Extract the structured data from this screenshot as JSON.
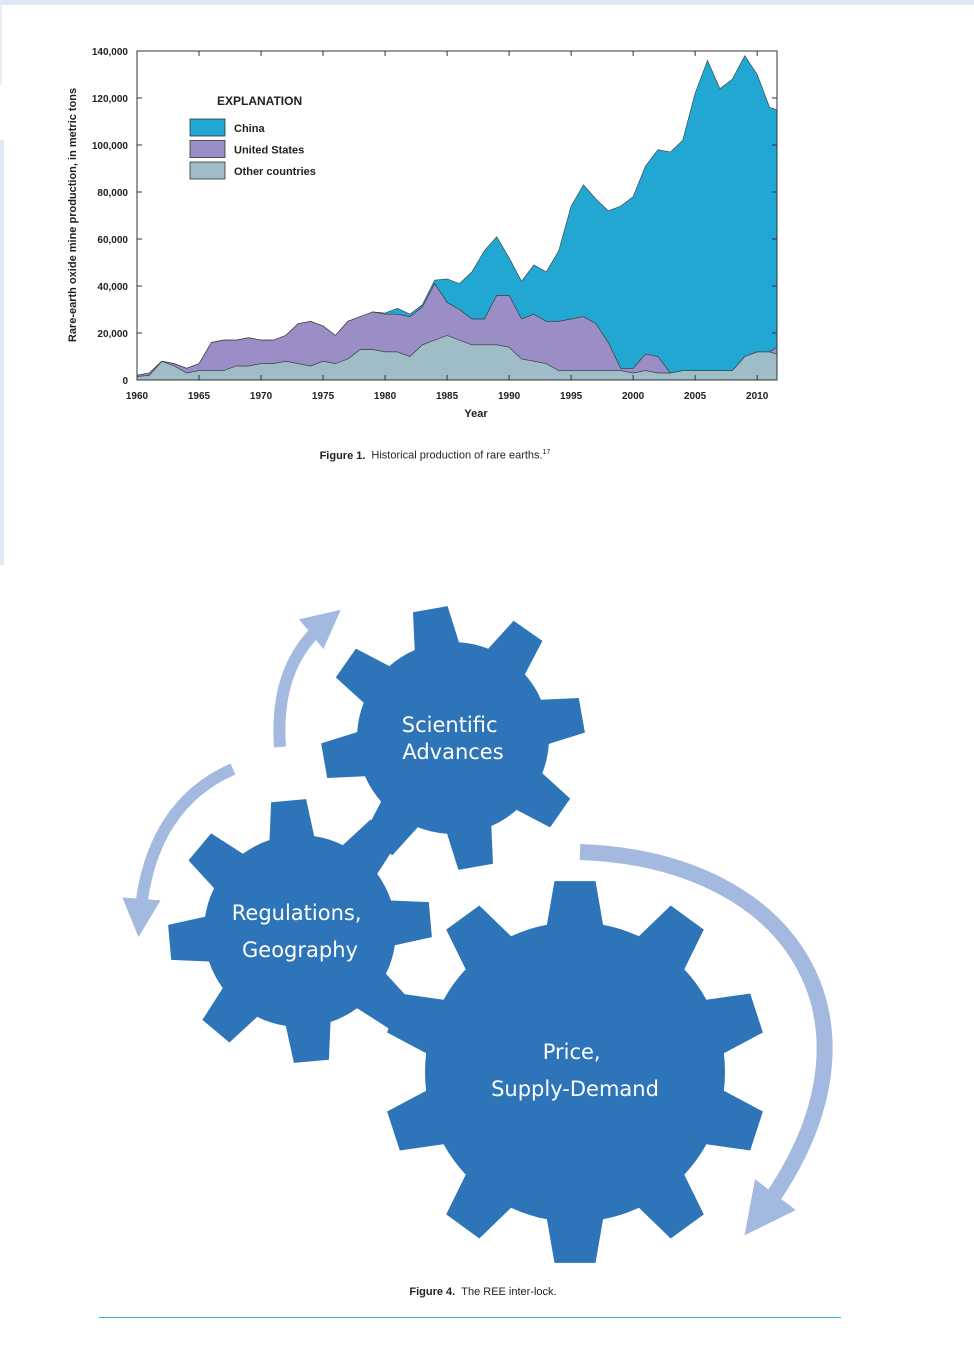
{
  "chart_data": {
    "type": "area",
    "stacked": true,
    "xlabel": "Year",
    "ylabel": "Rare-earth oxide mine production, in metric tons",
    "xlim": [
      1960,
      2011.6
    ],
    "ylim": [
      0,
      140000
    ],
    "x_ticks": [
      1960,
      1965,
      1970,
      1975,
      1980,
      1985,
      1990,
      1995,
      2000,
      2005,
      2010
    ],
    "x_tick_labels": [
      "1960",
      "1965",
      "1970",
      "1975",
      "1980",
      "1985",
      "1990",
      "1995",
      "2000",
      "2005",
      "2010"
    ],
    "y_ticks": [
      0,
      20000,
      40000,
      60000,
      80000,
      100000,
      120000,
      140000
    ],
    "y_tick_labels": [
      "0",
      "20,000",
      "40,000",
      "60,000",
      "80,000",
      "100,000",
      "120,000",
      "140,000"
    ],
    "legend_title": "EXPLANATION",
    "legend_position": "top-left",
    "grid": false,
    "series_order_bottom_to_top": [
      "Other countries",
      "United States",
      "China"
    ],
    "series": [
      {
        "name": "China",
        "color": "#22a7d3",
        "points": [
          [
            1960,
            0
          ],
          [
            1961,
            0
          ],
          [
            1962,
            0
          ],
          [
            1963,
            0
          ],
          [
            1964,
            0
          ],
          [
            1965,
            0
          ],
          [
            1966,
            0
          ],
          [
            1967,
            0
          ],
          [
            1968,
            0
          ],
          [
            1969,
            0
          ],
          [
            1970,
            0
          ],
          [
            1971,
            0
          ],
          [
            1972,
            0
          ],
          [
            1973,
            0
          ],
          [
            1974,
            0
          ],
          [
            1975,
            0
          ],
          [
            1976,
            0
          ],
          [
            1977,
            0
          ],
          [
            1978,
            0
          ],
          [
            1979,
            0
          ],
          [
            1980,
            500
          ],
          [
            1981,
            2500
          ],
          [
            1982,
            1000
          ],
          [
            1983,
            1000
          ],
          [
            1984,
            1500
          ],
          [
            1985,
            10000
          ],
          [
            1986,
            11000
          ],
          [
            1987,
            20000
          ],
          [
            1988,
            29000
          ],
          [
            1989,
            25000
          ],
          [
            1990,
            16000
          ],
          [
            1991,
            16000
          ],
          [
            1992,
            21000
          ],
          [
            1993,
            21000
          ],
          [
            1994,
            30000
          ],
          [
            1995,
            48000
          ],
          [
            1996,
            56000
          ],
          [
            1997,
            53000
          ],
          [
            1998,
            56000
          ],
          [
            1999,
            69000
          ],
          [
            2000,
            73000
          ],
          [
            2001,
            80000
          ],
          [
            2002,
            88000
          ],
          [
            2003,
            94000
          ],
          [
            2004,
            98000
          ],
          [
            2005,
            118000
          ],
          [
            2006,
            132000
          ],
          [
            2007,
            120000
          ],
          [
            2008,
            124000
          ],
          [
            2009,
            128000
          ],
          [
            2010,
            118000
          ],
          [
            2011,
            104000
          ],
          [
            2011.6,
            101000
          ]
        ]
      },
      {
        "name": "United States",
        "color": "#9b8ec6",
        "points": [
          [
            1960,
            500
          ],
          [
            1961,
            1000
          ],
          [
            1962,
            0
          ],
          [
            1963,
            1000
          ],
          [
            1964,
            2000
          ],
          [
            1965,
            3000
          ],
          [
            1966,
            12000
          ],
          [
            1967,
            13000
          ],
          [
            1968,
            11000
          ],
          [
            1969,
            12000
          ],
          [
            1970,
            10000
          ],
          [
            1971,
            10000
          ],
          [
            1972,
            11000
          ],
          [
            1973,
            17000
          ],
          [
            1974,
            19000
          ],
          [
            1975,
            15000
          ],
          [
            1976,
            12000
          ],
          [
            1977,
            16000
          ],
          [
            1978,
            14000
          ],
          [
            1979,
            16000
          ],
          [
            1980,
            16000
          ],
          [
            1981,
            16000
          ],
          [
            1982,
            17000
          ],
          [
            1983,
            16000
          ],
          [
            1984,
            24000
          ],
          [
            1985,
            14000
          ],
          [
            1986,
            13000
          ],
          [
            1987,
            11000
          ],
          [
            1988,
            11000
          ],
          [
            1989,
            21000
          ],
          [
            1990,
            22000
          ],
          [
            1991,
            17000
          ],
          [
            1992,
            20000
          ],
          [
            1993,
            18000
          ],
          [
            1994,
            21000
          ],
          [
            1995,
            22000
          ],
          [
            1996,
            23000
          ],
          [
            1997,
            20000
          ],
          [
            1998,
            12000
          ],
          [
            1999,
            1000
          ],
          [
            2000,
            2000
          ],
          [
            2001,
            7000
          ],
          [
            2002,
            7000
          ],
          [
            2003,
            0
          ],
          [
            2004,
            0
          ],
          [
            2005,
            0
          ],
          [
            2006,
            0
          ],
          [
            2007,
            0
          ],
          [
            2008,
            0
          ],
          [
            2009,
            0
          ],
          [
            2010,
            0
          ],
          [
            2011,
            0
          ],
          [
            2011.6,
            3000
          ]
        ]
      },
      {
        "name": "Other countries",
        "color": "#9fbdc6",
        "points": [
          [
            1960,
            1500
          ],
          [
            1961,
            2000
          ],
          [
            1962,
            8000
          ],
          [
            1963,
            6000
          ],
          [
            1964,
            3000
          ],
          [
            1965,
            4000
          ],
          [
            1966,
            4000
          ],
          [
            1967,
            4000
          ],
          [
            1968,
            6000
          ],
          [
            1969,
            6000
          ],
          [
            1970,
            7000
          ],
          [
            1971,
            7000
          ],
          [
            1972,
            8000
          ],
          [
            1973,
            7000
          ],
          [
            1974,
            6000
          ],
          [
            1975,
            8000
          ],
          [
            1976,
            7000
          ],
          [
            1977,
            9000
          ],
          [
            1978,
            13000
          ],
          [
            1979,
            13000
          ],
          [
            1980,
            12000
          ],
          [
            1981,
            12000
          ],
          [
            1982,
            10000
          ],
          [
            1983,
            15000
          ],
          [
            1984,
            17000
          ],
          [
            1985,
            19000
          ],
          [
            1986,
            17000
          ],
          [
            1987,
            15000
          ],
          [
            1988,
            15000
          ],
          [
            1989,
            15000
          ],
          [
            1990,
            14000
          ],
          [
            1991,
            9000
          ],
          [
            1992,
            8000
          ],
          [
            1993,
            7000
          ],
          [
            1994,
            4000
          ],
          [
            1995,
            4000
          ],
          [
            1996,
            4000
          ],
          [
            1997,
            4000
          ],
          [
            1998,
            4000
          ],
          [
            1999,
            4000
          ],
          [
            2000,
            3000
          ],
          [
            2001,
            4000
          ],
          [
            2002,
            3000
          ],
          [
            2003,
            3000
          ],
          [
            2004,
            4000
          ],
          [
            2005,
            4000
          ],
          [
            2006,
            4000
          ],
          [
            2007,
            4000
          ],
          [
            2008,
            4000
          ],
          [
            2009,
            10000
          ],
          [
            2010,
            12000
          ],
          [
            2011,
            12000
          ],
          [
            2011.6,
            11000
          ]
        ]
      }
    ]
  },
  "fig1_caption": {
    "label": "Figure 1.",
    "text": "Historical production of rare earths.",
    "ref": "17"
  },
  "gears": {
    "color": "#2e74b8",
    "arrow_color": "#a3b9e0",
    "items": [
      {
        "id": "scientific-advances",
        "lines": [
          "Scientific",
          "Advances"
        ]
      },
      {
        "id": "regulations-geography",
        "lines": [
          "Regulations,",
          "Geography"
        ]
      },
      {
        "id": "price-supply-demand",
        "lines": [
          "Price,",
          "Supply-Demand"
        ]
      }
    ]
  },
  "fig4_caption": {
    "label": "Figure 4.",
    "text": "The REE inter-lock."
  }
}
